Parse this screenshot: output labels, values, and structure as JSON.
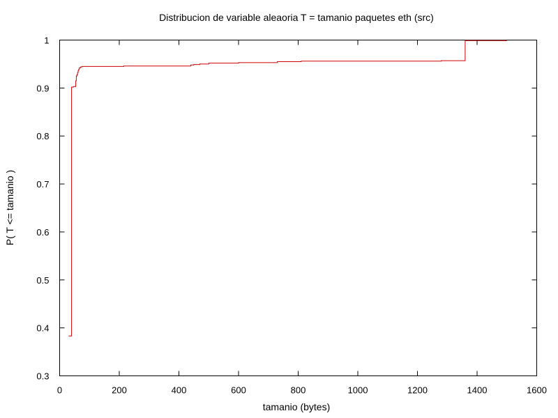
{
  "chart_data": {
    "type": "line",
    "step": true,
    "title": "Distribucion de variable aleaoria T = tamanio paquetes eth (src)",
    "xlabel": "tamanio (bytes)",
    "ylabel": "P( T <= tamanio )",
    "xlim": [
      0,
      1600
    ],
    "ylim": [
      0.3,
      1
    ],
    "xticks": [
      0,
      200,
      400,
      600,
      800,
      1000,
      1200,
      1400,
      1600
    ],
    "yticks": [
      0.3,
      0.4,
      0.5,
      0.6,
      0.7,
      0.8,
      0.9,
      1
    ],
    "grid": false,
    "legend": "none",
    "line_color": "#cc0000",
    "series": [
      {
        "x": [
          30,
          40,
          42,
          46,
          50,
          54,
          56,
          58,
          60,
          62,
          64,
          66,
          70,
          75,
          80,
          215,
          440,
          450,
          470,
          500,
          600,
          730,
          810,
          1280,
          1360,
          1500
        ],
        "y": [
          0.383,
          0.902,
          0.902,
          0.903,
          0.903,
          0.915,
          0.925,
          0.928,
          0.932,
          0.936,
          0.939,
          0.942,
          0.944,
          0.945,
          0.945,
          0.946,
          0.948,
          0.949,
          0.95,
          0.952,
          0.953,
          0.955,
          0.956,
          0.957,
          0.999,
          0.999
        ]
      }
    ]
  }
}
